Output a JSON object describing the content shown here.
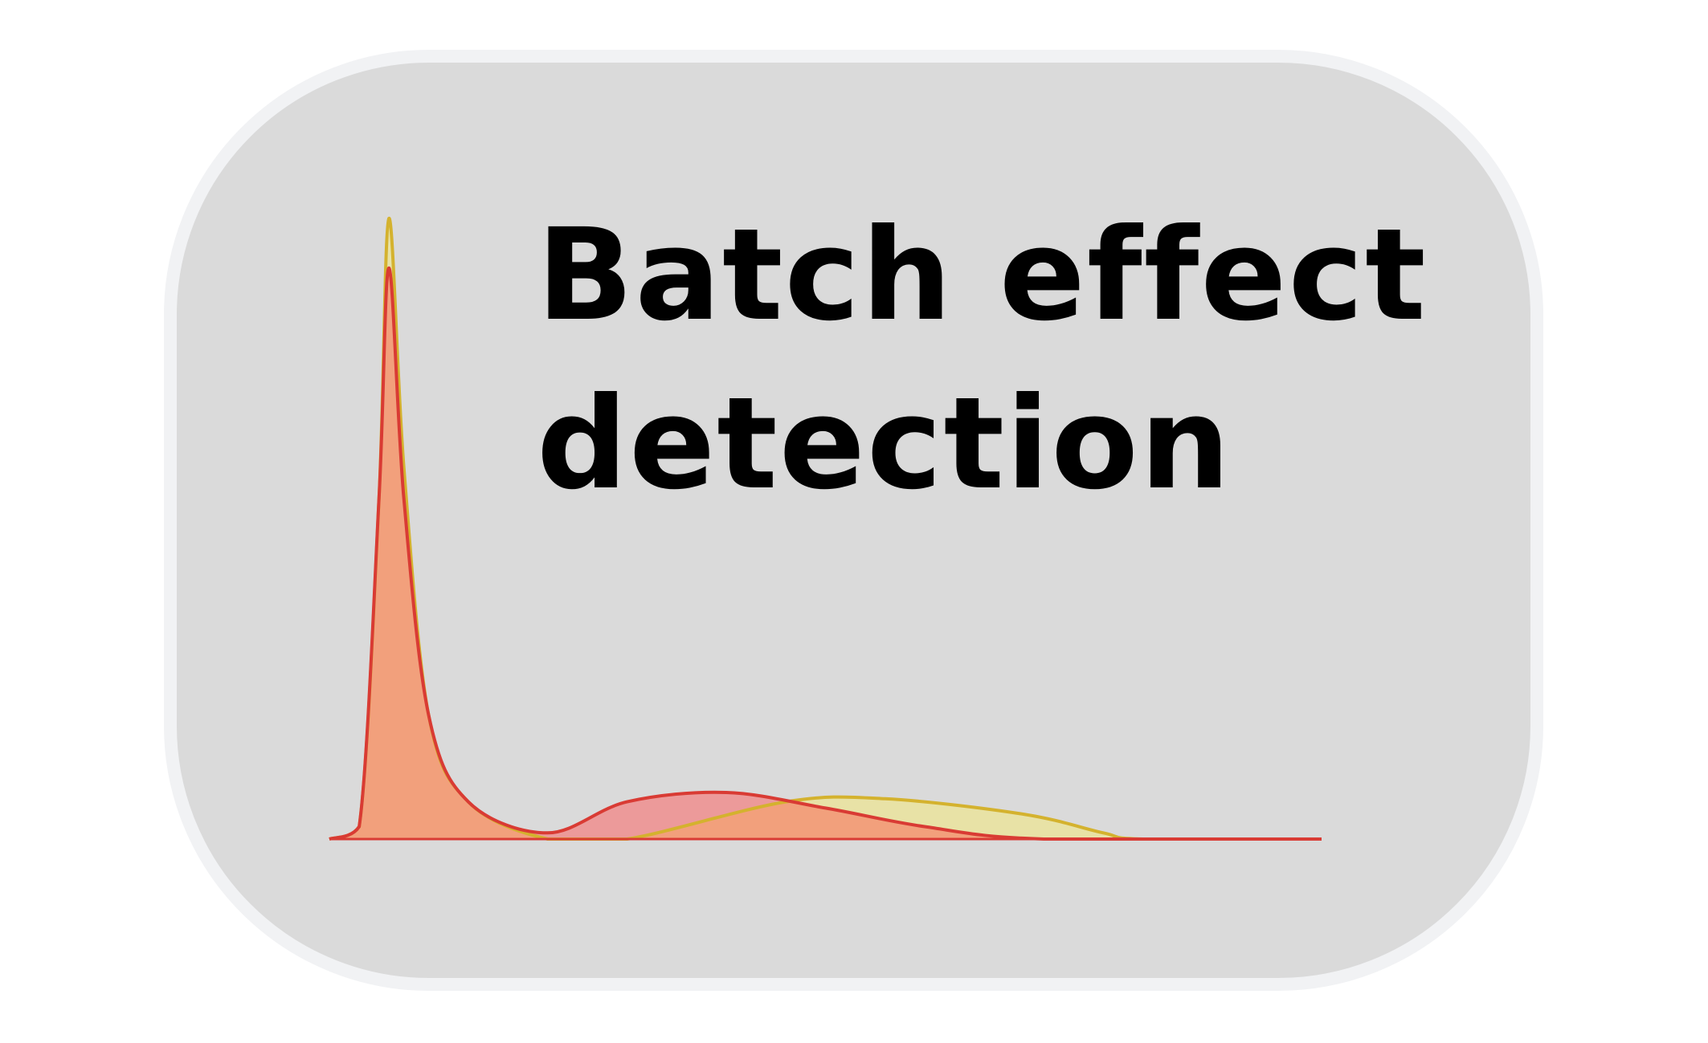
{
  "title": {
    "line1": "Batch effect",
    "line2": "detection"
  },
  "colors": {
    "card_fill": "#dadada",
    "card_border": "#f1f2f4",
    "batch_a_line": "#d4b22e",
    "batch_a_fill": "#e8e2a6",
    "batch_b_line": "#d93b34",
    "batch_b_fill": "#ec9a9a",
    "overlap_fill": "#f2a07c"
  },
  "chart_data": {
    "type": "area",
    "title": "",
    "xlabel": "",
    "ylabel": "",
    "note_axes": "no axes, ticks or legend are printed",
    "series": [
      {
        "name": "",
        "color": "#d4b22e",
        "points": [
          [
            0,
            0
          ],
          [
            0.03,
            0.02
          ],
          [
            0.05,
            0.55
          ],
          [
            0.06,
            1.0
          ],
          [
            0.075,
            0.6
          ],
          [
            0.1,
            0.2
          ],
          [
            0.14,
            0.06
          ],
          [
            0.22,
            0.0
          ],
          [
            0.3,
            0.0
          ],
          [
            0.46,
            0.06
          ],
          [
            0.56,
            0.065
          ],
          [
            0.7,
            0.04
          ],
          [
            0.78,
            0.01
          ],
          [
            0.82,
            0.0
          ],
          [
            1.0,
            0.0
          ]
        ]
      },
      {
        "name": "",
        "color": "#d93b34",
        "points": [
          [
            0,
            0
          ],
          [
            0.03,
            0.02
          ],
          [
            0.05,
            0.55
          ],
          [
            0.06,
            0.92
          ],
          [
            0.075,
            0.55
          ],
          [
            0.1,
            0.2
          ],
          [
            0.14,
            0.06
          ],
          [
            0.22,
            0.01
          ],
          [
            0.3,
            0.06
          ],
          [
            0.4,
            0.075
          ],
          [
            0.5,
            0.05
          ],
          [
            0.6,
            0.02
          ],
          [
            0.72,
            0.0
          ],
          [
            1.0,
            0.0
          ]
        ]
      }
    ],
    "xlim": [
      0,
      1
    ],
    "ylim": [
      0,
      1
    ]
  }
}
